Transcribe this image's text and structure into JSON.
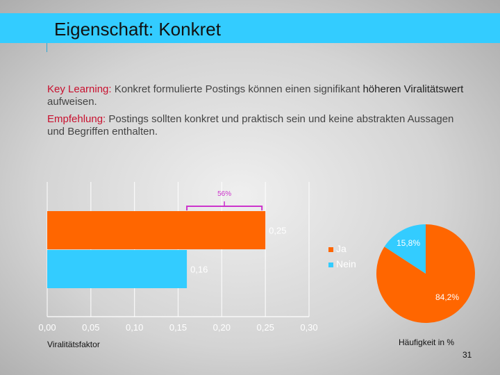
{
  "header": {
    "title": "Eigenschaft: Konkret"
  },
  "key_learning": {
    "label": "Key Learning:",
    "text": " Konkret formulierte Postings können einen signifikant ",
    "strong": "höheren Viralitätswert",
    "end": " aufweisen."
  },
  "recommendation": {
    "label": "Empfehlung:",
    "text": " Postings sollten konkret und praktisch sein und keine abstrakten Aussagen und Begriffen enthalten."
  },
  "chart_data": [
    {
      "type": "bar",
      "orientation": "horizontal",
      "categories": [
        "Ja",
        "Nein"
      ],
      "values": [
        0.25,
        0.16
      ],
      "value_labels": [
        "0,25",
        "0,16"
      ],
      "colors": [
        "#ff6600",
        "#33ccff"
      ],
      "xlim": [
        0,
        0.3
      ],
      "xticks": [
        0,
        0.05,
        0.1,
        0.15,
        0.2,
        0.25,
        0.3
      ],
      "xtick_labels": [
        "0,00",
        "0,05",
        "0,10",
        "0,15",
        "0,20",
        "0,25",
        "0,30"
      ],
      "xlabel": "Viralitätsfaktor",
      "grid": true,
      "annotation": {
        "text": "56%",
        "from": 0.16,
        "to": 0.25
      }
    },
    {
      "type": "pie",
      "title": "Häufigkeit in %",
      "labels": [
        "Ja",
        "Nein"
      ],
      "values": [
        84.2,
        15.8
      ],
      "value_labels": [
        "84,2%",
        "15,8%"
      ],
      "colors": [
        "#ff6600",
        "#33ccff"
      ],
      "legend_position": "left"
    }
  ],
  "page_number": "31"
}
